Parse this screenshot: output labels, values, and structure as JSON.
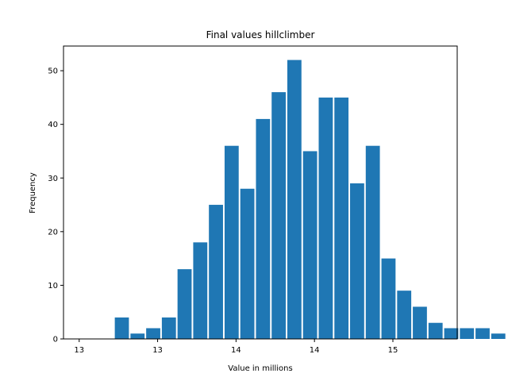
{
  "chart_data": {
    "type": "bar",
    "title": "Final values hillclimber",
    "xlabel": "Value in millions",
    "ylabel": "Frequency",
    "bar_color": "#1f77b4",
    "xlim": [
      12.92,
      15.43
    ],
    "ylim": [
      0,
      54.6
    ],
    "bin_start": 13.142,
    "bin_width": 0.1,
    "values": [
      0,
      4,
      1,
      2,
      4,
      13,
      18,
      25,
      36,
      28,
      41,
      46,
      52,
      35,
      45,
      45,
      29,
      36,
      15,
      9,
      6,
      3,
      2,
      2,
      2,
      1
    ],
    "x_ticks": [
      {
        "value": 13.02,
        "label": "13"
      },
      {
        "value": 13.52,
        "label": "13"
      },
      {
        "value": 14.02,
        "label": "14"
      },
      {
        "value": 14.52,
        "label": "14"
      },
      {
        "value": 15.02,
        "label": "15"
      },
      {
        "value": 15.52,
        "label": "15"
      }
    ],
    "y_ticks": [
      0,
      10,
      20,
      30,
      40,
      50
    ],
    "grid": false,
    "legend": "none"
  }
}
